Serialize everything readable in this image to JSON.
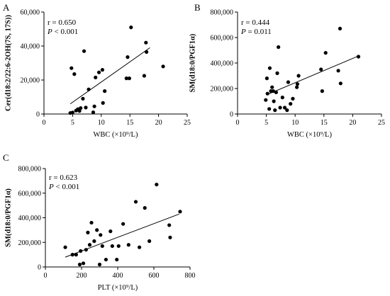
{
  "chart_data": [
    {
      "type": "scatter",
      "panel_label": "A",
      "ylabel": "Cer(d18:2/22:6-2OH(7S, 17S))",
      "xlabel": "WBC (×10⁹/L)",
      "xlim": [
        0,
        25
      ],
      "ylim": [
        0,
        60000
      ],
      "x_ticks": [
        "0",
        "5",
        "10",
        "15",
        "20",
        "25"
      ],
      "y_ticks": [
        "0",
        "20,000",
        "40,000",
        "60,000"
      ],
      "x_tick_values": [
        0,
        5,
        10,
        15,
        20,
        25
      ],
      "y_tick_values": [
        0,
        20000,
        40000,
        60000
      ],
      "stat_r": "r = 0.650",
      "stat_p_label": "P",
      "stat_p_value": " < 0.001",
      "fit_line": [
        [
          4.6,
          6000
        ],
        [
          18.5,
          39000
        ]
      ],
      "points": [
        [
          4.6,
          600
        ],
        [
          4.8,
          27000
        ],
        [
          5.0,
          900
        ],
        [
          5.3,
          23500
        ],
        [
          5.6,
          2000
        ],
        [
          5.9,
          2800
        ],
        [
          6.2,
          1800
        ],
        [
          6.4,
          3500
        ],
        [
          6.8,
          9000
        ],
        [
          7.0,
          37000
        ],
        [
          7.3,
          3800
        ],
        [
          7.8,
          14500
        ],
        [
          8.6,
          1000
        ],
        [
          8.8,
          4500
        ],
        [
          9.0,
          21500
        ],
        [
          9.6,
          24500
        ],
        [
          10.2,
          26000
        ],
        [
          10.3,
          6500
        ],
        [
          10.6,
          13500
        ],
        [
          14.4,
          21000
        ],
        [
          14.6,
          33500
        ],
        [
          14.9,
          21000
        ],
        [
          15.2,
          51000
        ],
        [
          17.5,
          22500
        ],
        [
          17.8,
          42000
        ],
        [
          17.9,
          36500
        ],
        [
          20.8,
          28000
        ]
      ]
    },
    {
      "type": "scatter",
      "panel_label": "B",
      "ylabel": "SM(d18:0/PGF1α)",
      "xlabel": "WBC (×10⁹/L)",
      "xlim": [
        0,
        25
      ],
      "ylim": [
        0,
        800000
      ],
      "x_ticks": [
        "0",
        "5",
        "10",
        "15",
        "20",
        "25"
      ],
      "y_ticks": [
        "0",
        "200,000",
        "400,000",
        "600,000",
        "800,000"
      ],
      "x_tick_values": [
        0,
        5,
        10,
        15,
        20,
        25
      ],
      "y_tick_values": [
        0,
        200000,
        400000,
        600000,
        800000
      ],
      "stat_r": "r = 0.444",
      "stat_p_label": "P",
      "stat_p_value": " = 0.011",
      "fit_line": [
        [
          5.0,
          150000
        ],
        [
          21.0,
          455000
        ]
      ],
      "points": [
        [
          4.9,
          110000
        ],
        [
          5.1,
          280000
        ],
        [
          5.2,
          160000
        ],
        [
          5.5,
          40000
        ],
        [
          5.6,
          360000
        ],
        [
          5.8,
          180000
        ],
        [
          6.0,
          210000
        ],
        [
          6.2,
          180000
        ],
        [
          6.3,
          100000
        ],
        [
          6.5,
          30000
        ],
        [
          6.7,
          170000
        ],
        [
          6.9,
          320000
        ],
        [
          7.1,
          525000
        ],
        [
          7.4,
          50000
        ],
        [
          7.8,
          130000
        ],
        [
          8.2,
          50000
        ],
        [
          8.6,
          30000
        ],
        [
          8.8,
          250000
        ],
        [
          9.2,
          80000
        ],
        [
          9.6,
          120000
        ],
        [
          10.3,
          210000
        ],
        [
          10.4,
          235000
        ],
        [
          10.6,
          300000
        ],
        [
          14.5,
          350000
        ],
        [
          14.7,
          180000
        ],
        [
          15.3,
          480000
        ],
        [
          17.5,
          340000
        ],
        [
          17.8,
          670000
        ],
        [
          17.9,
          240000
        ],
        [
          21.0,
          450000
        ]
      ]
    },
    {
      "type": "scatter",
      "panel_label": "C",
      "ylabel": "SM(d18:0/PGF1α)",
      "xlabel": "PLT (×10⁹/L)",
      "xlim": [
        0,
        800
      ],
      "ylim": [
        0,
        800000
      ],
      "x_ticks": [
        "0",
        "200",
        "400",
        "600",
        "800"
      ],
      "y_ticks": [
        "0",
        "200,000",
        "400,000",
        "600,000",
        "800,000"
      ],
      "x_tick_values": [
        0,
        200,
        400,
        600,
        800
      ],
      "y_tick_values": [
        0,
        200000,
        400000,
        600000,
        800000
      ],
      "stat_r": "r = 0.623",
      "stat_p_label": "P",
      "stat_p_value": " < 0.001",
      "fit_line": [
        [
          110,
          80000
        ],
        [
          740,
          430000
        ]
      ],
      "points": [
        [
          110,
          160000
        ],
        [
          150,
          100000
        ],
        [
          170,
          100000
        ],
        [
          190,
          20000
        ],
        [
          195,
          130000
        ],
        [
          210,
          30000
        ],
        [
          225,
          140000
        ],
        [
          235,
          280000
        ],
        [
          245,
          180000
        ],
        [
          255,
          360000
        ],
        [
          270,
          210000
        ],
        [
          285,
          300000
        ],
        [
          300,
          20000
        ],
        [
          305,
          260000
        ],
        [
          315,
          170000
        ],
        [
          335,
          60000
        ],
        [
          360,
          290000
        ],
        [
          370,
          170000
        ],
        [
          395,
          60000
        ],
        [
          405,
          170000
        ],
        [
          430,
          350000
        ],
        [
          460,
          180000
        ],
        [
          500,
          530000
        ],
        [
          520,
          160000
        ],
        [
          550,
          480000
        ],
        [
          575,
          210000
        ],
        [
          615,
          670000
        ],
        [
          685,
          340000
        ],
        [
          690,
          240000
        ],
        [
          745,
          450000
        ]
      ]
    }
  ]
}
